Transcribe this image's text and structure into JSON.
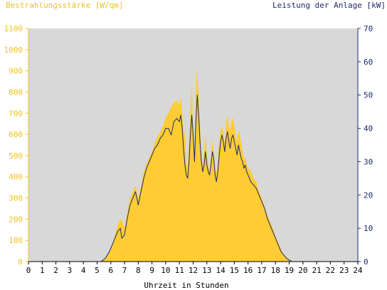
{
  "chart_data": {
    "type": "area",
    "left_axis_title": "Bestrahlungsstärke [W/qm]",
    "right_axis_title": "Leistung der Anlage [kW]",
    "xlabel": "Uhrzeit in Stunden",
    "xlim": [
      0,
      24
    ],
    "ylim_left": [
      0,
      1100
    ],
    "ylim_right": [
      0,
      70
    ],
    "x_ticks": [
      "0",
      "1",
      "2",
      "3",
      "4",
      "5",
      "6",
      "7",
      "8",
      "9",
      "10",
      "11",
      "12",
      "13",
      "14",
      "15",
      "16",
      "17",
      "18",
      "19",
      "20",
      "21",
      "22",
      "23",
      "24"
    ],
    "y_left_ticks": [
      "0",
      "100",
      "200",
      "300",
      "400",
      "500",
      "600",
      "700",
      "800",
      "900",
      "1000",
      "1100"
    ],
    "y_right_ticks": [
      "0",
      "10",
      "20",
      "30",
      "40",
      "50",
      "60",
      "70"
    ],
    "grid": false,
    "colors": {
      "plot_background": "#d8d8d8",
      "irradiance_fill": "#ffcc33",
      "irradiance_text": "#f0c020",
      "power_line": "#1a2a6a",
      "power_text": "#1a2a6a"
    },
    "series": [
      {
        "name": "Bestrahlungsstärke [W/qm]",
        "axis": "left",
        "style": "filled-area",
        "x": [
          0,
          5.2,
          5.5,
          5.8,
          6.0,
          6.2,
          6.4,
          6.6,
          6.8,
          6.9,
          7.0,
          7.2,
          7.4,
          7.6,
          7.8,
          8.0,
          8.2,
          8.4,
          8.6,
          8.8,
          9.0,
          9.2,
          9.4,
          9.6,
          9.8,
          10.0,
          10.2,
          10.4,
          10.6,
          10.8,
          11.0,
          11.1,
          11.2,
          11.3,
          11.4,
          11.5,
          11.6,
          11.7,
          11.8,
          11.9,
          12.0,
          12.1,
          12.2,
          12.3,
          12.4,
          12.5,
          12.6,
          12.7,
          12.8,
          12.9,
          13.0,
          13.1,
          13.2,
          13.3,
          13.4,
          13.5,
          13.6,
          13.7,
          13.8,
          13.9,
          14.0,
          14.1,
          14.2,
          14.3,
          14.4,
          14.5,
          14.6,
          14.7,
          14.8,
          14.9,
          15.0,
          15.1,
          15.2,
          15.3,
          15.4,
          15.5,
          15.6,
          15.7,
          15.8,
          15.9,
          16.0,
          16.2,
          16.4,
          16.6,
          16.8,
          17.0,
          17.2,
          17.4,
          17.6,
          17.8,
          18.0,
          18.2,
          18.4,
          18.6,
          18.8,
          19.0,
          19.2,
          19.4,
          19.6,
          19.8,
          20.0,
          20.2,
          24
        ],
        "values": [
          0,
          0,
          10,
          30,
          60,
          100,
          150,
          190,
          200,
          170,
          160,
          230,
          300,
          330,
          360,
          300,
          360,
          420,
          460,
          490,
          520,
          560,
          590,
          610,
          640,
          680,
          700,
          730,
          750,
          760,
          740,
          780,
          700,
          620,
          600,
          470,
          440,
          560,
          700,
          840,
          600,
          480,
          800,
          920,
          780,
          640,
          500,
          450,
          520,
          600,
          500,
          460,
          430,
          500,
          580,
          520,
          440,
          420,
          480,
          560,
          620,
          640,
          600,
          560,
          660,
          690,
          640,
          620,
          660,
          680,
          640,
          600,
          560,
          620,
          600,
          560,
          520,
          480,
          500,
          460,
          440,
          430,
          390,
          380,
          330,
          300,
          260,
          220,
          190,
          160,
          120,
          90,
          60,
          30,
          15,
          5,
          0,
          0,
          0,
          0,
          0,
          0,
          0
        ]
      },
      {
        "name": "Leistung der Anlage [kW]",
        "axis": "right",
        "style": "line",
        "x": [
          0,
          5.3,
          5.6,
          5.9,
          6.1,
          6.3,
          6.5,
          6.7,
          6.8,
          7.0,
          7.2,
          7.4,
          7.6,
          7.8,
          8.0,
          8.2,
          8.4,
          8.6,
          8.8,
          9.0,
          9.2,
          9.4,
          9.6,
          9.8,
          10.0,
          10.2,
          10.4,
          10.6,
          10.8,
          11.0,
          11.1,
          11.2,
          11.3,
          11.4,
          11.5,
          11.6,
          11.7,
          11.8,
          11.9,
          12.0,
          12.1,
          12.2,
          12.3,
          12.4,
          12.5,
          12.6,
          12.7,
          12.8,
          12.9,
          13.0,
          13.1,
          13.2,
          13.3,
          13.4,
          13.5,
          13.6,
          13.7,
          13.8,
          13.9,
          14.0,
          14.1,
          14.2,
          14.3,
          14.4,
          14.5,
          14.6,
          14.7,
          14.8,
          14.9,
          15.0,
          15.1,
          15.2,
          15.3,
          15.4,
          15.5,
          15.6,
          15.7,
          15.8,
          15.9,
          16.0,
          16.2,
          16.4,
          16.6,
          16.8,
          17.0,
          17.2,
          17.4,
          17.6,
          17.8,
          18.0,
          18.2,
          18.4,
          18.6,
          18.8,
          19.0,
          19.2,
          19.4,
          19.6,
          19.8,
          20.0,
          20.2,
          24
        ],
        "values": [
          0,
          0,
          1,
          3,
          5,
          7,
          9,
          10,
          7,
          8,
          13,
          17,
          19,
          21,
          17,
          21,
          25,
          28,
          30,
          32,
          34,
          35,
          37,
          38,
          40,
          40,
          38,
          42,
          43,
          42,
          44,
          40,
          34,
          29,
          26,
          25,
          30,
          38,
          44,
          38,
          30,
          42,
          50,
          44,
          36,
          30,
          27,
          29,
          33,
          29,
          27,
          26,
          29,
          33,
          31,
          26,
          24,
          27,
          32,
          36,
          38,
          36,
          33,
          37,
          39,
          36,
          34,
          37,
          38,
          36,
          34,
          32,
          35,
          33,
          31,
          30,
          28,
          29,
          27,
          26,
          24,
          23,
          22,
          20,
          18,
          16,
          13,
          11,
          9,
          7,
          5,
          3,
          2,
          1,
          0.5,
          0,
          0,
          0,
          0,
          0,
          0,
          0
        ]
      }
    ]
  }
}
